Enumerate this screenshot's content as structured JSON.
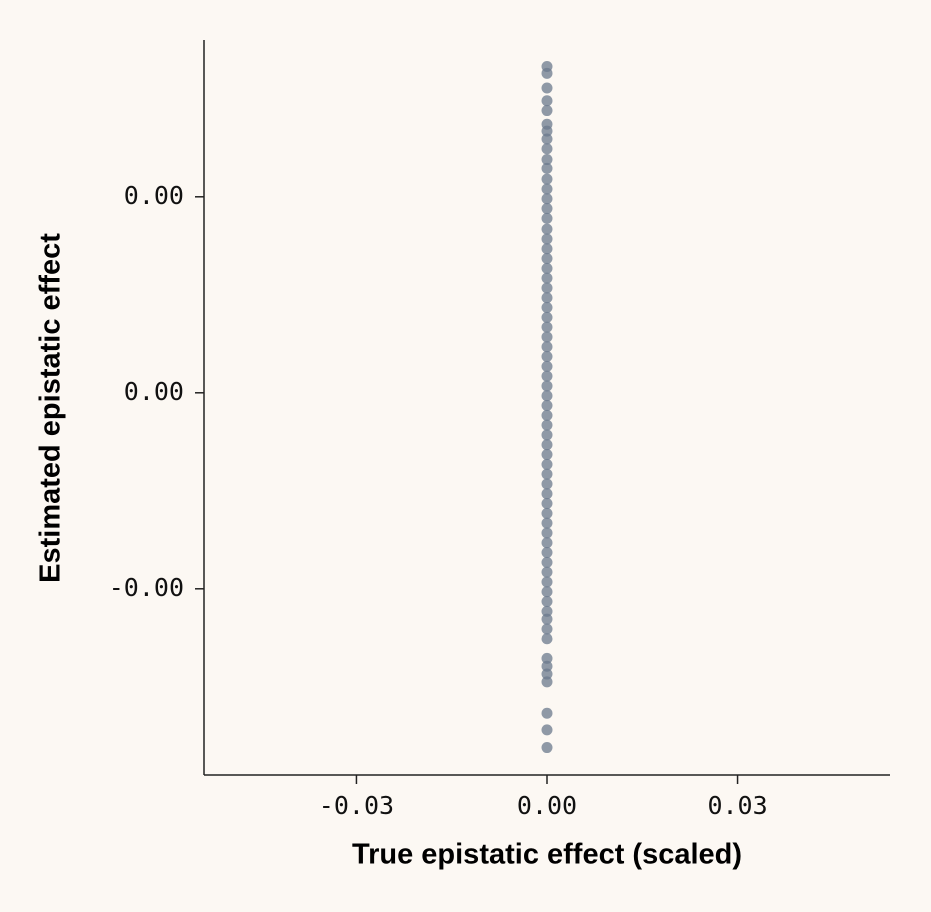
{
  "chart_data": {
    "type": "scatter",
    "x_label": "True epistatic effect (scaled)",
    "y_label": "Estimated epistatic effect",
    "color": "#6b7a8c",
    "xlim": [
      -0.054,
      0.054
    ],
    "ylim": [
      -0.0039,
      0.0036
    ],
    "xticks": [
      -0.03,
      {
        "value": 0,
        "label": "0.00"
      },
      0.03
    ],
    "yticks": [
      {
        "value": -0.002,
        "label": "-0.00"
      },
      {
        "value": 0,
        "label": "0.00"
      },
      {
        "value": 0.002,
        "label": "0.00"
      }
    ],
    "series": [
      {
        "x": [
          0,
          0,
          0,
          0,
          0,
          0,
          0,
          0,
          0,
          0,
          0,
          0,
          0,
          0,
          0,
          0,
          0,
          0,
          0,
          0,
          0,
          0,
          0,
          0,
          0,
          0,
          0,
          0,
          0,
          0,
          0,
          0,
          0,
          0,
          0,
          0,
          0,
          0,
          0,
          0,
          0,
          0,
          0,
          0,
          0,
          0,
          0,
          0,
          0,
          0,
          0,
          0,
          0,
          0,
          0,
          0,
          0,
          0,
          0,
          0,
          0,
          0,
          0,
          0,
          0,
          0
        ],
        "values": [
          0.00333,
          0.00326,
          0.00311,
          0.00298,
          0.00288,
          0.00274,
          0.00267,
          0.00259,
          0.00249,
          0.00238,
          0.00229,
          0.00218,
          0.00208,
          0.00198,
          0.00188,
          0.00178,
          0.00167,
          0.00157,
          0.00147,
          0.00137,
          0.00127,
          0.00117,
          0.00107,
          0.00097,
          0.00087,
          0.00077,
          0.00067,
          0.00057,
          0.00047,
          0.00037,
          0.00027,
          0.00017,
          7e-05,
          -3e-05,
          -0.00013,
          -0.00023,
          -0.00033,
          -0.00043,
          -0.00053,
          -0.00063,
          -0.00073,
          -0.00083,
          -0.00093,
          -0.00103,
          -0.00113,
          -0.00123,
          -0.00133,
          -0.00143,
          -0.00153,
          -0.00163,
          -0.00173,
          -0.00183,
          -0.00193,
          -0.00203,
          -0.00213,
          -0.00223,
          -0.00231,
          -0.00241,
          -0.00251,
          -0.00271,
          -0.00279,
          -0.00287,
          -0.00295,
          -0.00327,
          -0.00344,
          -0.00362
        ]
      }
    ]
  }
}
